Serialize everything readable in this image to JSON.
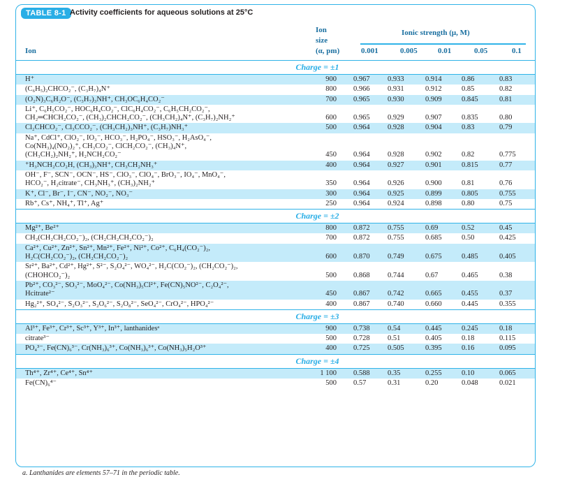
{
  "table": {
    "badge": "TABLE 8-1",
    "title": "Activity coefficients for aqueous solutions at 25°C",
    "header": {
      "ion": "Ion",
      "size_lines": [
        "Ion",
        "size",
        "(α, pm)"
      ],
      "ionic_strength": "Ionic strength (μ, M)",
      "strengths": [
        "0.001",
        "0.005",
        "0.01",
        "0.05",
        "0.1"
      ]
    },
    "colors": {
      "accent": "#29aee6",
      "row_shade": "#c4ebfa"
    },
    "groups": [
      {
        "charge": "Charge = ±1",
        "rows": [
          {
            "ion": [
              "H⁺"
            ],
            "size": "900",
            "values": [
              "0.967",
              "0.933",
              "0.914",
              "0.86",
              "0.83"
            ]
          },
          {
            "ion": [
              "(C₆H₅)₂CHCO₂⁻, (C₃H₇)₄N⁺"
            ],
            "size": "800",
            "values": [
              "0.966",
              "0.931",
              "0.912",
              "0.85",
              "0.82"
            ]
          },
          {
            "ion": [
              "(O₂N)₃C₆H₂O⁻, (C₃H₇)₃NH⁺, CH₃OC₆H₄CO₂⁻"
            ],
            "size": "700",
            "values": [
              "0.965",
              "0.930",
              "0.909",
              "0.845",
              "0.81"
            ]
          },
          {
            "ion": [
              "Li⁺, C₆H₅CO₂⁻, HOC₆H₄CO₂⁻, ClC₆H₄CO₂⁻, C₆H₅CH₂CO₂⁻,",
              "CH₂═CHCH₂CO₂⁻, (CH₃)₂CHCH₂CO₂⁻, (CH₃CH₂)₄N⁺, (C₃H₇)₂NH₂⁺"
            ],
            "size": "600",
            "values": [
              "0.965",
              "0.929",
              "0.907",
              "0.835",
              "0.80"
            ]
          },
          {
            "ion": [
              "Cl₂CHCO₂⁻, Cl₃CCO₂⁻, (CH₃CH₂)₃NH⁺, (C₃H₇)NH₃⁺"
            ],
            "size": "500",
            "values": [
              "0.964",
              "0.928",
              "0.904",
              "0.83",
              "0.79"
            ]
          },
          {
            "ion": [
              "Na⁺, CdCl⁺, ClO₂⁻, IO₃⁻, HCO₃⁻, H₂PO₄⁻, HSO₃⁻, H₂AsO₄⁻,",
              "Co(NH₃)₄(NO₂)₂⁺, CH₃CO₂⁻, ClCH₂CO₂⁻, (CH₃)₄N⁺,",
              "(CH₃CH₂)₂NH₂⁺, H₂NCH₂CO₂⁻"
            ],
            "size": "450",
            "values": [
              "0.964",
              "0.928",
              "0.902",
              "0.82",
              "0.775"
            ]
          },
          {
            "ion": [
              "⁺H₃NCH₂CO₂H, (CH₃)₃NH⁺, CH₃CH₂NH₃⁺"
            ],
            "size": "400",
            "values": [
              "0.964",
              "0.927",
              "0.901",
              "0.815",
              "0.77"
            ]
          },
          {
            "ion": [
              "OH⁻, F⁻, SCN⁻, OCN⁻, HS⁻, ClO₃⁻, ClO₄⁻, BrO₃⁻, IO₄⁻, MnO₄⁻,",
              "HCO₂⁻, H₂citrate⁻, CH₃NH₃⁺, (CH₃)₂NH₂⁺"
            ],
            "size": "350",
            "values": [
              "0.964",
              "0.926",
              "0.900",
              "0.81",
              "0.76"
            ]
          },
          {
            "ion": [
              "K⁺, Cl⁻, Br⁻, I⁻, CN⁻, NO₂⁻, NO₃⁻"
            ],
            "size": "300",
            "values": [
              "0.964",
              "0.925",
              "0.899",
              "0.805",
              "0.755"
            ]
          },
          {
            "ion": [
              "Rb⁺, Cs⁺, NH₄⁺, Tl⁺, Ag⁺"
            ],
            "size": "250",
            "values": [
              "0.964",
              "0.924",
              "0.898",
              "0.80",
              "0.75"
            ]
          }
        ]
      },
      {
        "charge": "Charge = ±2",
        "rows": [
          {
            "ion": [
              "Mg²⁺, Be²⁺"
            ],
            "size": "800",
            "values": [
              "0.872",
              "0.755",
              "0.69",
              "0.52",
              "0.45"
            ]
          },
          {
            "ion": [
              "CH₂(CH₂CH₂CO₂⁻)₂, (CH₂CH₂CH₂CO₂⁻)₂"
            ],
            "size": "700",
            "values": [
              "0.872",
              "0.755",
              "0.685",
              "0.50",
              "0.425"
            ]
          },
          {
            "ion": [
              "Ca²⁺, Cu²⁺, Zn²⁺, Sn²⁺, Mn²⁺, Fe²⁺, Ni²⁺, Co²⁺, C₆H₄(CO₂⁻)₂,",
              "H₂C(CH₂CO₂⁻)₂, (CH₂CH₂CO₂⁻)₂"
            ],
            "size": "600",
            "values": [
              "0.870",
              "0.749",
              "0.675",
              "0.485",
              "0.405"
            ]
          },
          {
            "ion": [
              "Sr²⁺, Ba²⁺, Cd²⁺, Hg²⁺, S²⁻, S₂O₄²⁻, WO₄²⁻, H₂C(CO₂⁻)₂, (CH₂CO₂⁻)₂,",
              "(CHOHCO₂⁻)₂"
            ],
            "size": "500",
            "values": [
              "0.868",
              "0.744",
              "0.67",
              "0.465",
              "0.38"
            ]
          },
          {
            "ion": [
              "Pb²⁺, CO₃²⁻, SO₃²⁻, MoO₄²⁻, Co(NH₃)₅Cl²⁺, Fe(CN)₅NO²⁻, C₂O₄²⁻,",
              "Hcitrate²⁻"
            ],
            "size": "450",
            "values": [
              "0.867",
              "0.742",
              "0.665",
              "0.455",
              "0.37"
            ]
          },
          {
            "ion": [
              "Hg₂²⁺, SO₄²⁻, S₂O₃²⁻, S₂O₆²⁻, S₂O₈²⁻, SeO₄²⁻, CrO₄²⁻, HPO₄²⁻"
            ],
            "size": "400",
            "values": [
              "0.867",
              "0.740",
              "0.660",
              "0.445",
              "0.355"
            ]
          }
        ]
      },
      {
        "charge": "Charge = ±3",
        "rows": [
          {
            "ion": [
              "Al³⁺, Fe³⁺, Cr³⁺, Sc³⁺, Y³⁺, In³⁺, lanthanidesᵃ"
            ],
            "size": "900",
            "values": [
              "0.738",
              "0.54",
              "0.445",
              "0.245",
              "0.18"
            ]
          },
          {
            "ion": [
              "citrate³⁻"
            ],
            "size": "500",
            "values": [
              "0.728",
              "0.51",
              "0.405",
              "0.18",
              "0.115"
            ]
          },
          {
            "ion": [
              "PO₄³⁻, Fe(CN)₆³⁻, Cr(NH₃)₆³⁺, Co(NH₃)₆³⁺, Co(NH₃)₅H₂O³⁺"
            ],
            "size": "400",
            "values": [
              "0.725",
              "0.505",
              "0.395",
              "0.16",
              "0.095"
            ]
          }
        ]
      },
      {
        "charge": "Charge = ±4",
        "rows": [
          {
            "ion": [
              "Th⁴⁺, Zr⁴⁺, Ce⁴⁺, Sn⁴⁺"
            ],
            "size": "1 100",
            "values": [
              "0.588",
              "0.35",
              "0.255",
              "0.10",
              "0.065"
            ]
          },
          {
            "ion": [
              "Fe(CN)₆⁴⁻"
            ],
            "size": "500",
            "values": [
              "0.57",
              "0.31",
              "0.20",
              "0.048",
              "0.021"
            ]
          }
        ]
      }
    ],
    "footnote": "a. Lanthanides are elements 57–71 in the periodic table."
  }
}
